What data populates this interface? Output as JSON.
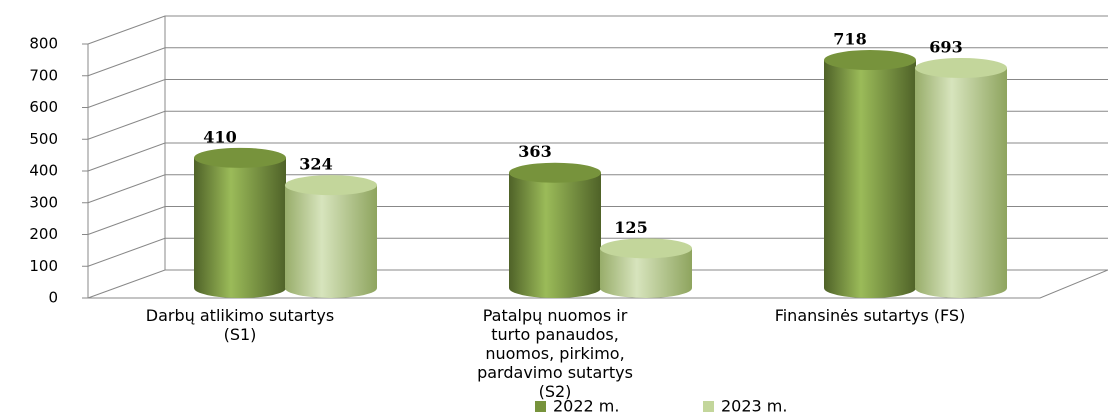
{
  "chart_data": {
    "type": "bar3d",
    "categories": [
      "Darbų atlikimo sutartys (S1)",
      "Patalpų nuomos ir turto panaudos, nuomos, pirkimo, pardavimo sutartys (S2)",
      "Finansinės sutartys (FS)"
    ],
    "series": [
      {
        "name": "2022 m.",
        "color": "#77933c",
        "values": [
          410,
          363,
          718
        ]
      },
      {
        "name": "2023 m.",
        "color": "#c3d69b",
        "values": [
          324,
          125,
          693
        ]
      }
    ],
    "ylim": [
      0,
      800
    ],
    "yticks": [
      0,
      100,
      200,
      300,
      400,
      500,
      600,
      700,
      800
    ],
    "grid": true
  }
}
